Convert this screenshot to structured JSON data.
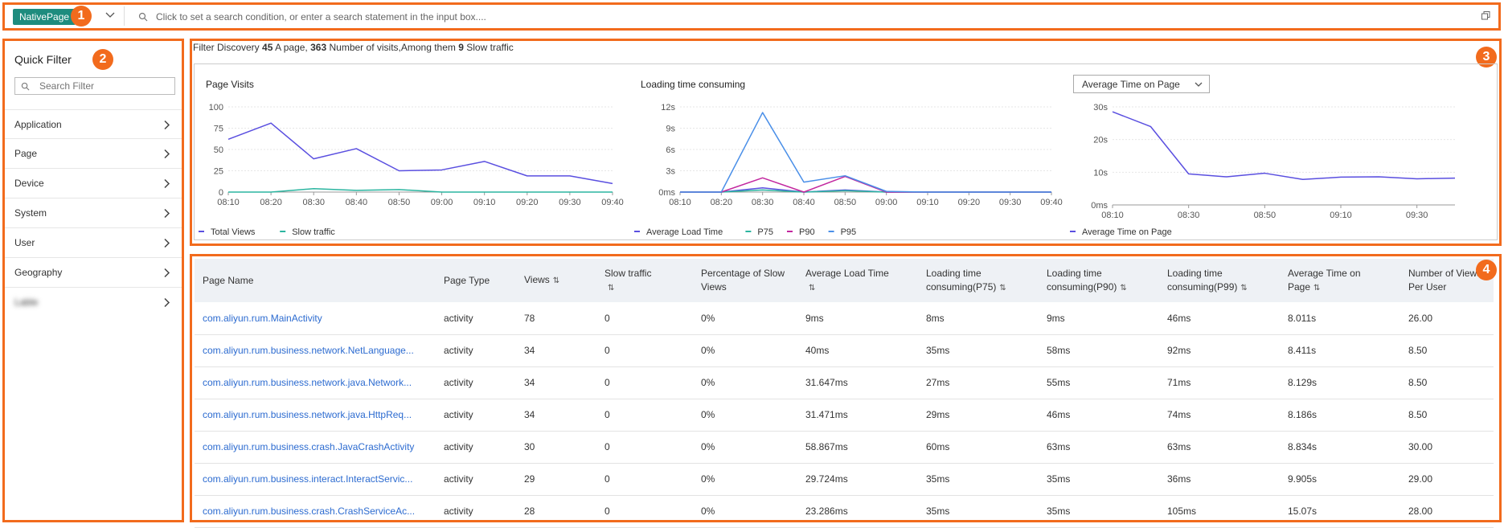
{
  "search_bar": {
    "tag": "NativePage",
    "placeholder": "Click to set a search condition, or enter a search statement in the input box...."
  },
  "quick_filter": {
    "title": "Quick Filter",
    "search_placeholder": "Search Filter",
    "items": [
      "Application",
      "Page",
      "Device",
      "System",
      "User",
      "Geography",
      "Lable"
    ]
  },
  "summary": {
    "prefix": "Filter Discovery",
    "pages": "45",
    "pages_label": "A page,",
    "visits": "363",
    "visits_label": "Number of visits,Among them",
    "slow": "9",
    "slow_label": "Slow traffic"
  },
  "badges": [
    "1",
    "2",
    "3",
    "4"
  ],
  "charts": {
    "page_visits": {
      "title": "Page Visits",
      "x": [
        "08:10",
        "08:20",
        "08:30",
        "08:40",
        "08:50",
        "09:00",
        "09:10",
        "09:20",
        "09:30",
        "09:40"
      ],
      "y_ticks": [
        "0",
        "25",
        "50",
        "75",
        "100"
      ],
      "ylim": [
        0,
        100
      ],
      "series": [
        {
          "name": "Total Views",
          "color": "#5a4fe0",
          "values": [
            62,
            81,
            39,
            51,
            25,
            26,
            36,
            19,
            19,
            10
          ]
        },
        {
          "name": "Slow traffic",
          "color": "#2bb5a0",
          "values": [
            0,
            0,
            4,
            2,
            3,
            0,
            0,
            0,
            0,
            0
          ]
        }
      ]
    },
    "loading_time": {
      "title": "Loading time consuming",
      "x": [
        "08:10",
        "08:20",
        "08:30",
        "08:40",
        "08:50",
        "09:00",
        "09:10",
        "09:20",
        "09:30",
        "09:40"
      ],
      "y_ticks": [
        "0ms",
        "3s",
        "6s",
        "9s",
        "12s"
      ],
      "ylim": [
        0,
        12
      ],
      "series": [
        {
          "name": "Average Load Time",
          "color": "#5a4fe0",
          "values": [
            0,
            0,
            0.6,
            0,
            0.3,
            0,
            0,
            0,
            0,
            0
          ]
        },
        {
          "name": "P75",
          "color": "#2bb5a0",
          "values": [
            0,
            0,
            0.3,
            0,
            0.2,
            0,
            0,
            0,
            0,
            0
          ]
        },
        {
          "name": "P90",
          "color": "#c2279f",
          "values": [
            0,
            0,
            2.0,
            0,
            2.2,
            0,
            0,
            0,
            0,
            0
          ]
        },
        {
          "name": "P95",
          "color": "#4a8fe8",
          "values": [
            0,
            0,
            11.2,
            1.4,
            2.3,
            0.1,
            0,
            0,
            0,
            0
          ]
        }
      ]
    },
    "avg_time": {
      "dropdown": "Average Time on Page",
      "x_ticks": [
        "08:10",
        "08:30",
        "08:50",
        "09:10",
        "09:30"
      ],
      "y_ticks": [
        "0ms",
        "10s",
        "20s",
        "30s"
      ],
      "ylim": [
        0,
        30
      ],
      "series": [
        {
          "name": "Average Time on Page",
          "color": "#5a4fe0",
          "values": [
            28.5,
            24,
            9.5,
            8.6,
            9.7,
            7.8,
            8.5,
            8.6,
            8.0,
            8.2
          ]
        }
      ]
    }
  },
  "table": {
    "headers": [
      "Page Name",
      "Page Type",
      "Views",
      "Slow traffic",
      "Percentage of Slow Views",
      "Average Load Time",
      "Loading time consuming(P75)",
      "Loading time consuming(P90)",
      "Loading time consuming(P99)",
      "Average Time on Page",
      "Number of Views Per User"
    ],
    "rows": [
      [
        "com.aliyun.rum.MainActivity",
        "activity",
        "78",
        "0",
        "0%",
        "9ms",
        "8ms",
        "9ms",
        "46ms",
        "8.011s",
        "26.00"
      ],
      [
        "com.aliyun.rum.business.network.NetLanguage...",
        "activity",
        "34",
        "0",
        "0%",
        "40ms",
        "35ms",
        "58ms",
        "92ms",
        "8.411s",
        "8.50"
      ],
      [
        "com.aliyun.rum.business.network.java.Network...",
        "activity",
        "34",
        "0",
        "0%",
        "31.647ms",
        "27ms",
        "55ms",
        "71ms",
        "8.129s",
        "8.50"
      ],
      [
        "com.aliyun.rum.business.network.java.HttpReq...",
        "activity",
        "34",
        "0",
        "0%",
        "31.471ms",
        "29ms",
        "46ms",
        "74ms",
        "8.186s",
        "8.50"
      ],
      [
        "com.aliyun.rum.business.crash.JavaCrashActivity",
        "activity",
        "30",
        "0",
        "0%",
        "58.867ms",
        "60ms",
        "63ms",
        "63ms",
        "8.834s",
        "30.00"
      ],
      [
        "com.aliyun.rum.business.interact.InteractServic...",
        "activity",
        "29",
        "0",
        "0%",
        "29.724ms",
        "35ms",
        "35ms",
        "36ms",
        "9.905s",
        "29.00"
      ],
      [
        "com.aliyun.rum.business.crash.CrashServiceAc...",
        "activity",
        "28",
        "0",
        "0%",
        "23.286ms",
        "35ms",
        "35ms",
        "105ms",
        "15.07s",
        "28.00"
      ]
    ]
  }
}
